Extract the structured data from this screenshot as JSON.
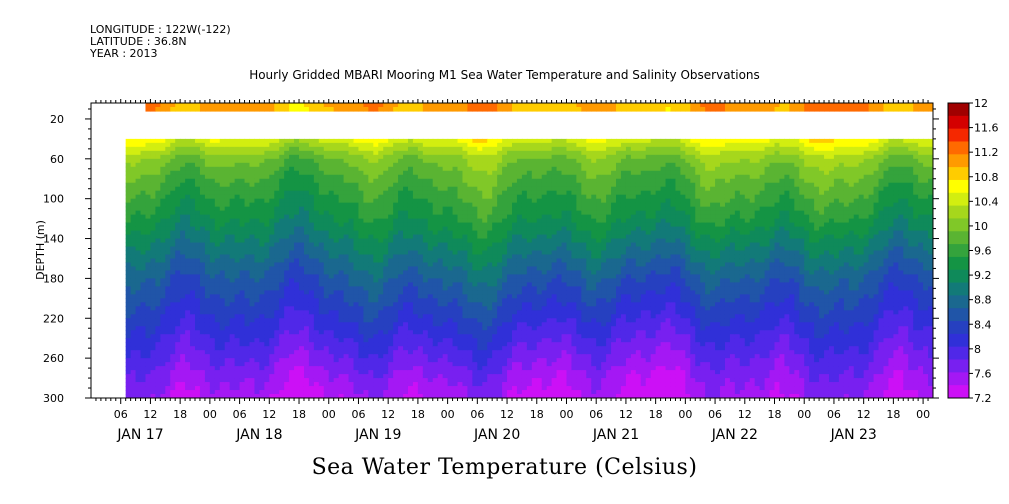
{
  "header": {
    "longitude": "LONGITUDE : 122W(-122)",
    "latitude": "LATITUDE : 36.8N",
    "year": "YEAR : 2013"
  },
  "chart_data": {
    "type": "heatmap",
    "title": "Hourly Gridded MBARI Mooring M1 Sea Water Temperature and Salinity Observations",
    "xlabel": "Sea Water Temperature (Celsius)",
    "ylabel": "DEPTH (m)",
    "y_range_m": [
      4,
      300
    ],
    "y_inverted": true,
    "y_ticks": [
      20,
      60,
      100,
      140,
      180,
      220,
      260,
      300
    ],
    "x_range_hours_from_jan17_00": [
      0,
      170
    ],
    "x_hour_ticks": [
      "06",
      "12",
      "18",
      "00",
      "06",
      "12",
      "18",
      "00",
      "06",
      "12",
      "18",
      "00",
      "06",
      "12",
      "18",
      "00",
      "06",
      "12",
      "18",
      "00",
      "06",
      "12",
      "18",
      "00",
      "06",
      "12",
      "18",
      "00"
    ],
    "x_day_labels": [
      "JAN 17",
      "JAN 18",
      "JAN 19",
      "JAN 20",
      "JAN 21",
      "JAN 22",
      "JAN 23"
    ],
    "data_start_hour": 7,
    "missing_depth_band_m": [
      12,
      40
    ],
    "legend_levels": [
      "12",
      "11.6",
      "11.2",
      "10.8",
      "10.4",
      "10",
      "9.6",
      "9.2",
      "8.8",
      "8.4",
      "8",
      "7.6",
      "7.2"
    ],
    "legend_colors": [
      "#a00000",
      "#d40000",
      "#f52800",
      "#ff6a00",
      "#ff9a00",
      "#ffcc00",
      "#ffff00",
      "#d2ee10",
      "#a6d71c",
      "#80c828",
      "#5ab432",
      "#34a33c",
      "#149444",
      "#0f8a5a",
      "#127a78",
      "#1a688f",
      "#2055a8",
      "#2640c0",
      "#3030d8",
      "#5028e8",
      "#7820f0",
      "#a418f4",
      "#cc10f6"
    ],
    "depth_profile": [
      {
        "depth": 4,
        "temp": 11.05
      },
      {
        "depth": 12,
        "temp": 11.0
      },
      {
        "depth": 40,
        "temp": 10.55
      },
      {
        "depth": 60,
        "temp": 10.0
      },
      {
        "depth": 80,
        "temp": 9.75
      },
      {
        "depth": 100,
        "temp": 9.55
      },
      {
        "depth": 120,
        "temp": 9.35
      },
      {
        "depth": 140,
        "temp": 9.1
      },
      {
        "depth": 160,
        "temp": 8.85
      },
      {
        "depth": 180,
        "temp": 8.6
      },
      {
        "depth": 200,
        "temp": 8.4
      },
      {
        "depth": 220,
        "temp": 8.2
      },
      {
        "depth": 240,
        "temp": 8.0
      },
      {
        "depth": 260,
        "temp": 7.8
      },
      {
        "depth": 280,
        "temp": 7.6
      },
      {
        "depth": 300,
        "temp": 7.45
      }
    ]
  }
}
